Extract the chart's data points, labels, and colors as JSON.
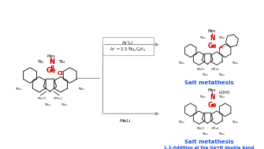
{
  "bg_color": "#ffffff",
  "reagent1": "Ar’Li",
  "reagent1_sub": "Ar’ = 3,5-ᵗBu₂C₆H₃",
  "reagent2": "MeLi",
  "label_top": "Salt metathesis",
  "label_bottom_1": "Salt metathesis",
  "label_bottom_2": "1,2-Addition at the Ge=N double bond",
  "label_color": "#1a52e0",
  "Ge_color": "#cc0000",
  "N_color": "#cc0000",
  "Cl_color": "#cc0000",
  "Ar_color": "#cc0000",
  "text_color": "#111111",
  "ring_color": "#222222",
  "arrow_color": "#999999",
  "box_color": "#aaaaaa",
  "figw": 3.35,
  "figh": 1.89,
  "dpi": 100
}
